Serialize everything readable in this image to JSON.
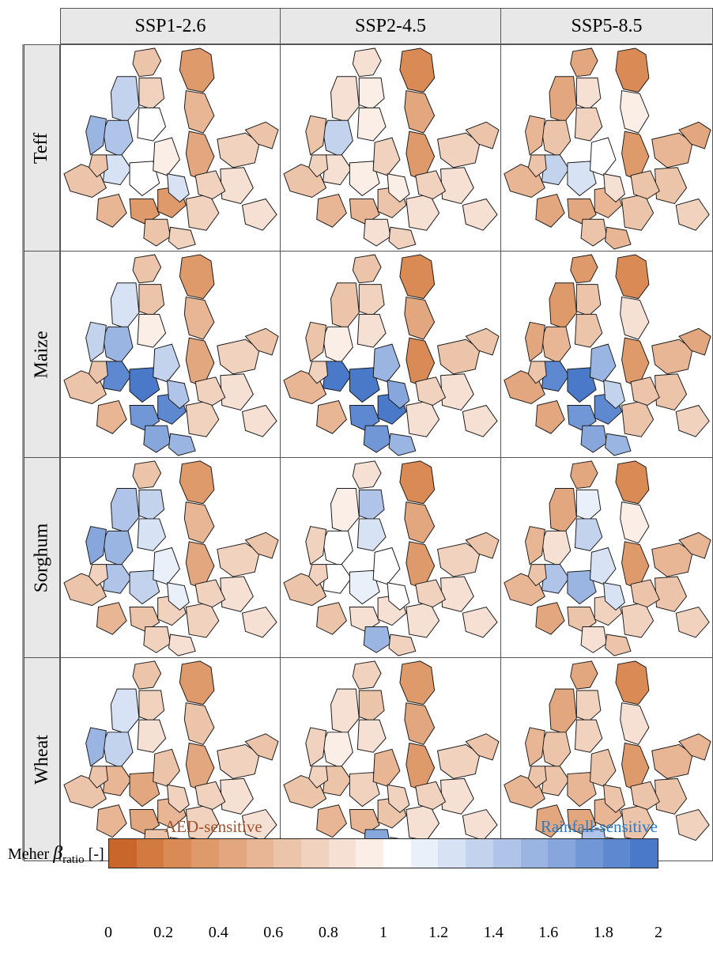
{
  "columns": [
    "SSP1-2.6",
    "SSP2-4.5",
    "SSP5-8.5"
  ],
  "rows": [
    "Teff",
    "Maize",
    "Sorghum",
    "Wheat"
  ],
  "legend": {
    "left_label": "AED-sensitive",
    "right_label": "Rainfall-sensitive",
    "left_color": "#a0522d",
    "right_color": "#2e7bc4",
    "axis_label_prefix": "Meher ",
    "axis_label_symbol": "β",
    "axis_label_sub": "ratio",
    "axis_label_suffix": " [-]",
    "ticks": [
      "0",
      "0.2",
      "0.4",
      "0.6",
      "0.8",
      "1",
      "1.2",
      "1.4",
      "1.6",
      "1.8",
      "2"
    ],
    "range": [
      0,
      2
    ]
  },
  "colorbar_colors": [
    "#c8662c",
    "#d27a40",
    "#d98a55",
    "#de9a6a",
    "#e3a780",
    "#e8b595",
    "#ecc4aa",
    "#f0d2bf",
    "#f5e0d3",
    "#fbeee6",
    "#ffffff",
    "#eaf0fa",
    "#d7e2f4",
    "#c3d3ee",
    "#afc4e8",
    "#9bb5e2",
    "#86a6dc",
    "#7297d6",
    "#5e88d0",
    "#4a79ca"
  ],
  "maps": {
    "Teff": [
      [
        0.6,
        0.3,
        1.3,
        1.4,
        0.7,
        1.0,
        1.2,
        1.05,
        0.95,
        0.55,
        0.4,
        1.5,
        0.65,
        0.55,
        0.7,
        0.6,
        0.3,
        0.35,
        0.6,
        1.2,
        0.7,
        0.8,
        0.75,
        0.65,
        0.8,
        0.7
      ],
      [
        0.8,
        0.2,
        0.8,
        1.3,
        0.9,
        0.9,
        0.8,
        0.95,
        0.75,
        0.4,
        0.3,
        0.6,
        0.6,
        0.55,
        0.7,
        0.6,
        0.5,
        0.6,
        0.8,
        0.9,
        0.85,
        0.8,
        0.75,
        0.7,
        0.8,
        0.75
      ],
      [
        0.4,
        0.2,
        0.4,
        0.6,
        0.8,
        0.7,
        1.3,
        1.2,
        1.0,
        0.9,
        0.3,
        0.5,
        0.5,
        0.4,
        0.5,
        0.4,
        0.4,
        0.5,
        0.6,
        0.8,
        0.6,
        0.6,
        0.5,
        0.6,
        0.7,
        0.6
      ]
    ],
    "Maize": [
      [
        0.6,
        0.3,
        1.2,
        1.5,
        0.6,
        0.9,
        1.85,
        1.9,
        1.3,
        0.5,
        0.4,
        1.3,
        0.6,
        0.5,
        0.7,
        0.6,
        1.7,
        1.8,
        1.6,
        1.4,
        0.7,
        0.8,
        1.5,
        0.65,
        0.8,
        0.7
      ],
      [
        0.6,
        0.2,
        0.6,
        0.9,
        0.7,
        0.8,
        1.9,
        1.95,
        1.5,
        0.4,
        0.2,
        0.6,
        0.5,
        0.5,
        0.6,
        0.6,
        1.8,
        1.9,
        1.7,
        1.6,
        0.8,
        0.8,
        1.5,
        0.7,
        0.8,
        0.7
      ],
      [
        0.3,
        0.2,
        0.3,
        0.5,
        0.6,
        0.6,
        1.8,
        1.9,
        1.5,
        0.8,
        0.3,
        0.4,
        0.4,
        0.4,
        0.5,
        0.4,
        1.7,
        1.8,
        1.6,
        1.3,
        0.6,
        0.6,
        1.5,
        0.6,
        0.7,
        0.6
      ]
    ],
    "Sorghum": [
      [
        0.6,
        0.3,
        1.4,
        1.5,
        1.3,
        1.2,
        1.4,
        1.3,
        1.1,
        0.5,
        0.4,
        1.6,
        0.6,
        0.5,
        0.7,
        0.65,
        0.6,
        0.7,
        0.7,
        1.1,
        0.7,
        0.8,
        0.8,
        0.7,
        0.8,
        0.7
      ],
      [
        0.8,
        0.2,
        0.9,
        1.0,
        1.4,
        1.2,
        1.05,
        1.1,
        1.0,
        0.4,
        0.3,
        0.7,
        0.6,
        0.6,
        0.7,
        0.65,
        0.8,
        0.8,
        1.5,
        1.0,
        0.85,
        0.8,
        0.75,
        0.7,
        0.8,
        0.75
      ],
      [
        0.4,
        0.2,
        0.4,
        0.8,
        1.1,
        1.3,
        1.4,
        1.5,
        1.2,
        0.9,
        0.3,
        0.5,
        0.5,
        0.4,
        0.5,
        0.5,
        0.6,
        0.7,
        0.8,
        1.2,
        0.7,
        0.6,
        0.6,
        0.6,
        0.7,
        0.6
      ]
    ],
    "Wheat": [
      [
        0.6,
        0.3,
        1.2,
        1.3,
        0.7,
        0.8,
        0.5,
        0.4,
        0.6,
        0.6,
        0.4,
        1.5,
        0.6,
        0.55,
        0.7,
        0.6,
        0.4,
        0.5,
        0.6,
        0.7,
        0.7,
        0.8,
        0.8,
        0.6,
        0.8,
        0.7
      ],
      [
        0.7,
        0.3,
        0.8,
        0.9,
        0.6,
        0.8,
        0.6,
        0.7,
        0.5,
        0.4,
        0.3,
        0.7,
        0.6,
        0.55,
        0.7,
        0.6,
        0.5,
        0.6,
        1.6,
        0.7,
        0.85,
        0.8,
        0.75,
        0.7,
        0.8,
        0.75
      ],
      [
        0.4,
        0.2,
        0.4,
        0.6,
        0.7,
        0.7,
        0.6,
        0.5,
        0.6,
        0.8,
        0.3,
        0.5,
        0.5,
        0.4,
        0.5,
        0.5,
        0.4,
        0.5,
        1.4,
        0.6,
        0.6,
        0.6,
        0.5,
        0.6,
        0.7,
        0.6
      ]
    ]
  }
}
